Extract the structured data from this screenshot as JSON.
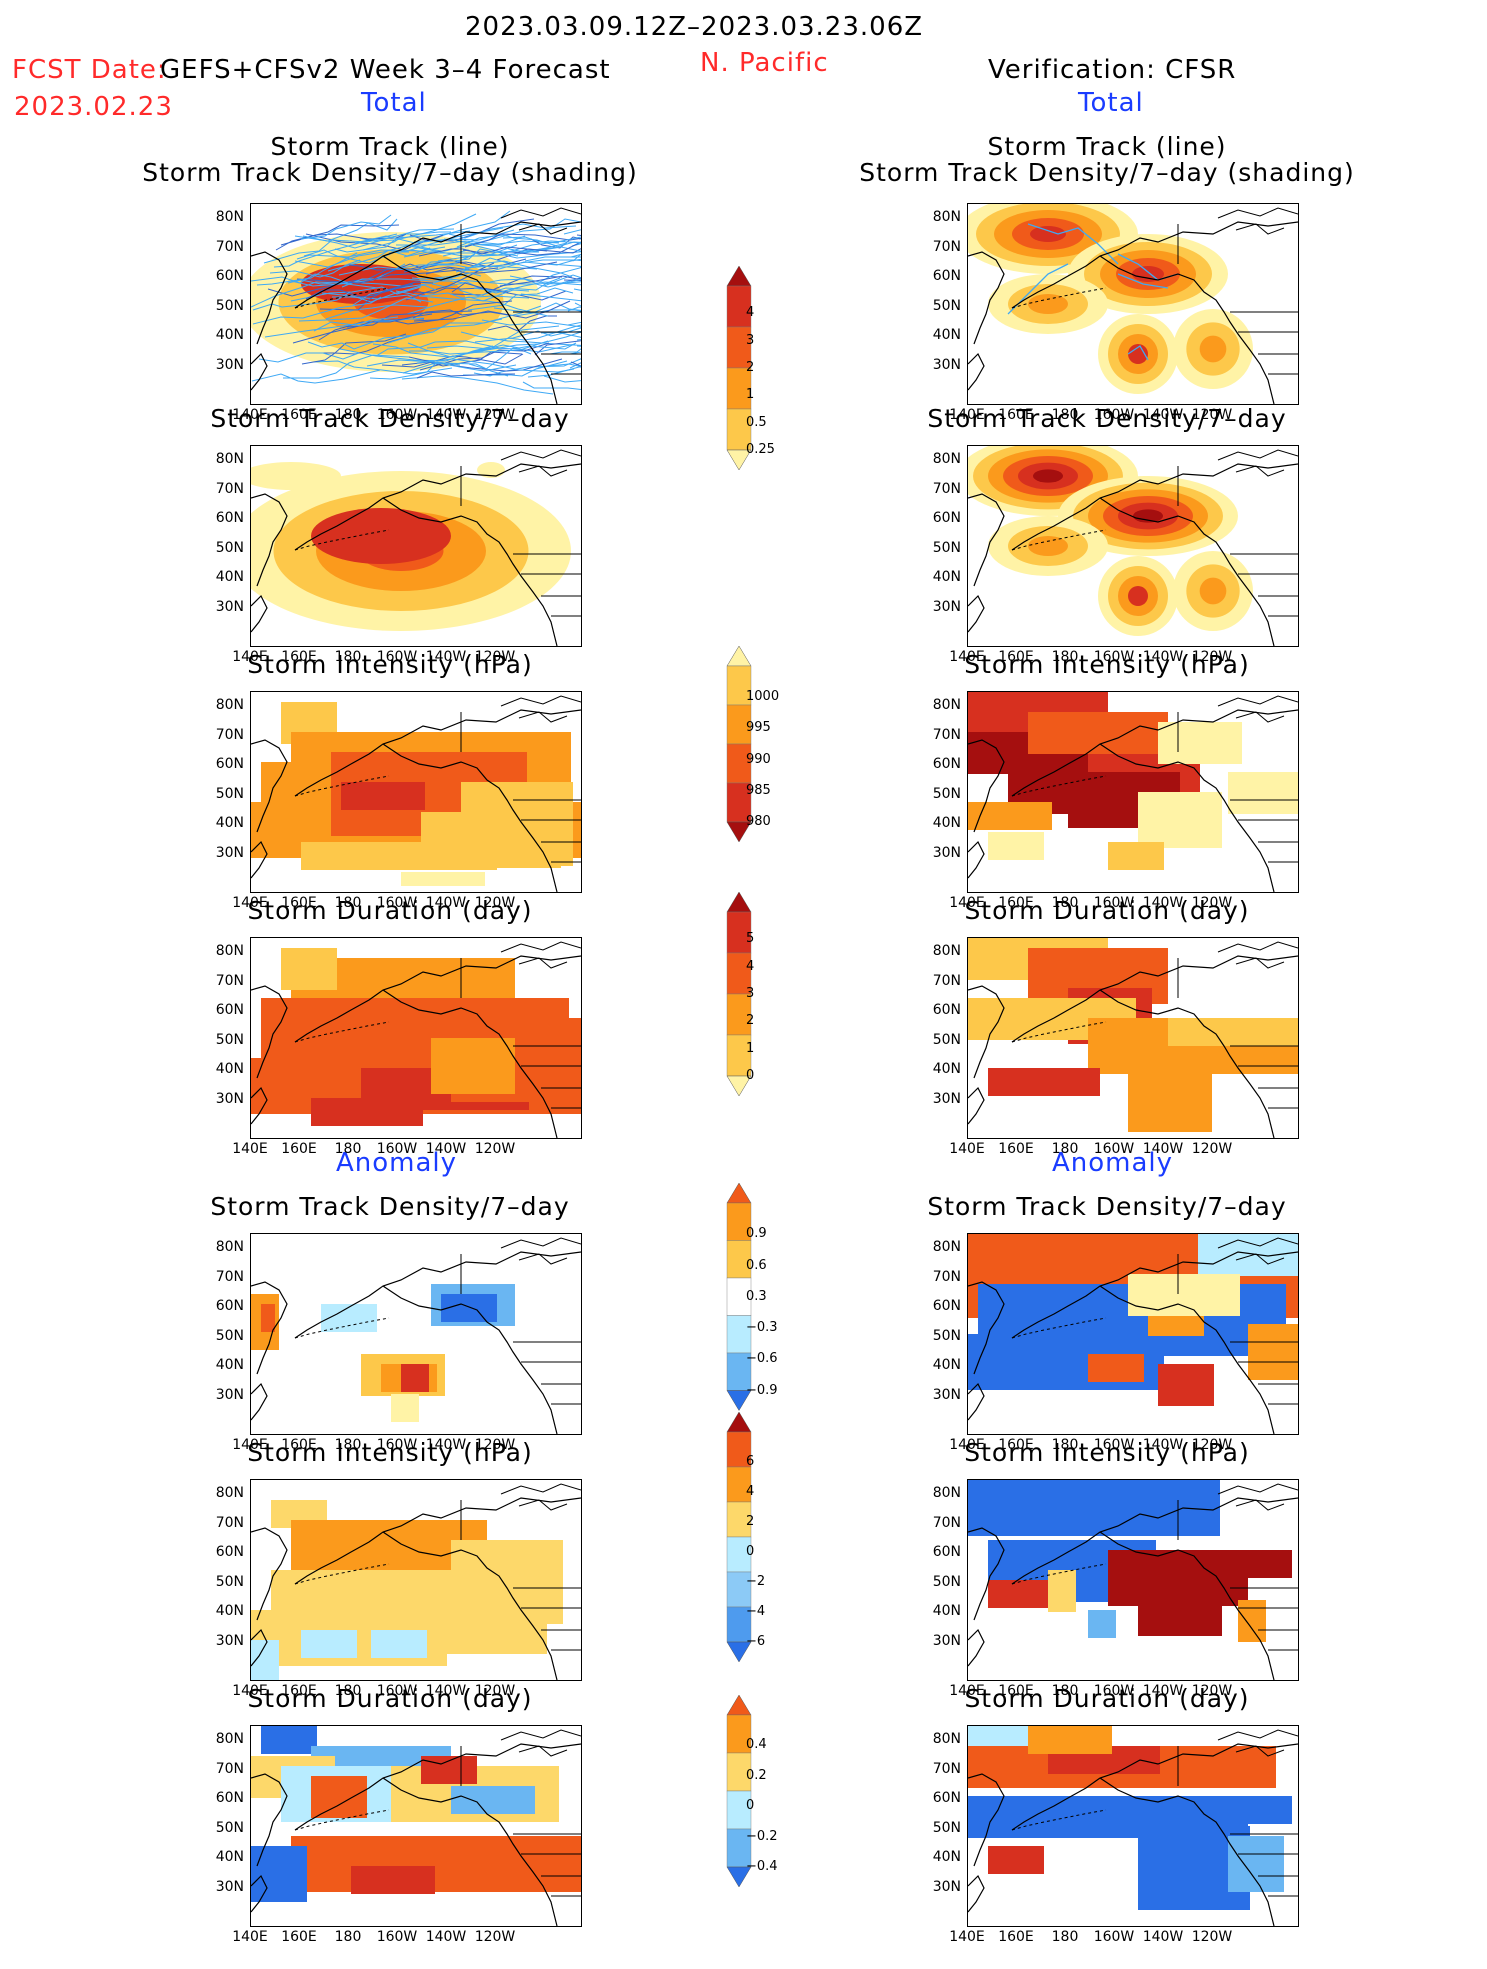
{
  "header": {
    "date_range": "2023.03.09.12Z–2023.03.23.06Z",
    "fcst_label": "FCST Date:",
    "fcst_model": "GEFS+CFSv2 Week 3–4 Forecast",
    "fcst_date": "2023.02.23",
    "region": "N. Pacific",
    "verification": "Verification: CFSR"
  },
  "sections": {
    "total": "Total",
    "anomaly": "Anomaly"
  },
  "titles": {
    "track_line": "Storm Track (line)",
    "track_density_shading": "Storm Track Density/7–day (shading)",
    "track_density": "Storm Track Density/7–day",
    "intensity": "Storm Intensity (hPa)",
    "duration": "Storm Duration (day)"
  },
  "axes": {
    "lat_ticks": [
      "80N",
      "70N",
      "60N",
      "50N",
      "40N",
      "30N"
    ],
    "lon_ticks": [
      "140E",
      "160E",
      "180",
      "160W",
      "140W",
      "120W"
    ]
  },
  "colorbars": {
    "density": {
      "labels": [
        "4",
        "3",
        "2",
        "1",
        "0.5",
        "0.25"
      ],
      "colors": [
        "#a50f0f",
        "#d7301f",
        "#f05a1a",
        "#fb9a1c",
        "#fdc84a",
        "#fff3a6"
      ]
    },
    "intensity": {
      "labels": [
        "1000",
        "995",
        "990",
        "985",
        "980"
      ],
      "colors": [
        "#fff3a6",
        "#fdc84a",
        "#fb9a1c",
        "#f05a1a",
        "#d7301f",
        "#a50f0f"
      ]
    },
    "duration": {
      "labels": [
        "5",
        "4",
        "3",
        "2",
        "1",
        "0"
      ],
      "colors": [
        "#a50f0f",
        "#d7301f",
        "#f05a1a",
        "#fb9a1c",
        "#fdc84a",
        "#fff3a6"
      ]
    },
    "anom_density": {
      "labels": [
        "0.9",
        "0.6",
        "0.3",
        "−0.3",
        "−0.6",
        "−0.9"
      ],
      "colors": [
        "#f05a1a",
        "#fb9a1c",
        "#fdc84a",
        "#ffffff",
        "#b8ecff",
        "#6ab6f2",
        "#2a6fe6"
      ]
    },
    "anom_intensity": {
      "labels": [
        "6",
        "4",
        "2",
        "0",
        "−2",
        "−4",
        "−6"
      ],
      "colors": [
        "#a50f0f",
        "#f05a1a",
        "#fb9a1c",
        "#fdd86a",
        "#b8ecff",
        "#8ccaf6",
        "#4e9bee",
        "#2a6fe6"
      ]
    },
    "anom_duration": {
      "labels": [
        "0.4",
        "0.2",
        "0",
        "−0.2",
        "−0.4"
      ],
      "colors": [
        "#f05a1a",
        "#fb9a1c",
        "#fdd86a",
        "#b8ecff",
        "#6ab6f2",
        "#2a6fe6"
      ]
    }
  }
}
